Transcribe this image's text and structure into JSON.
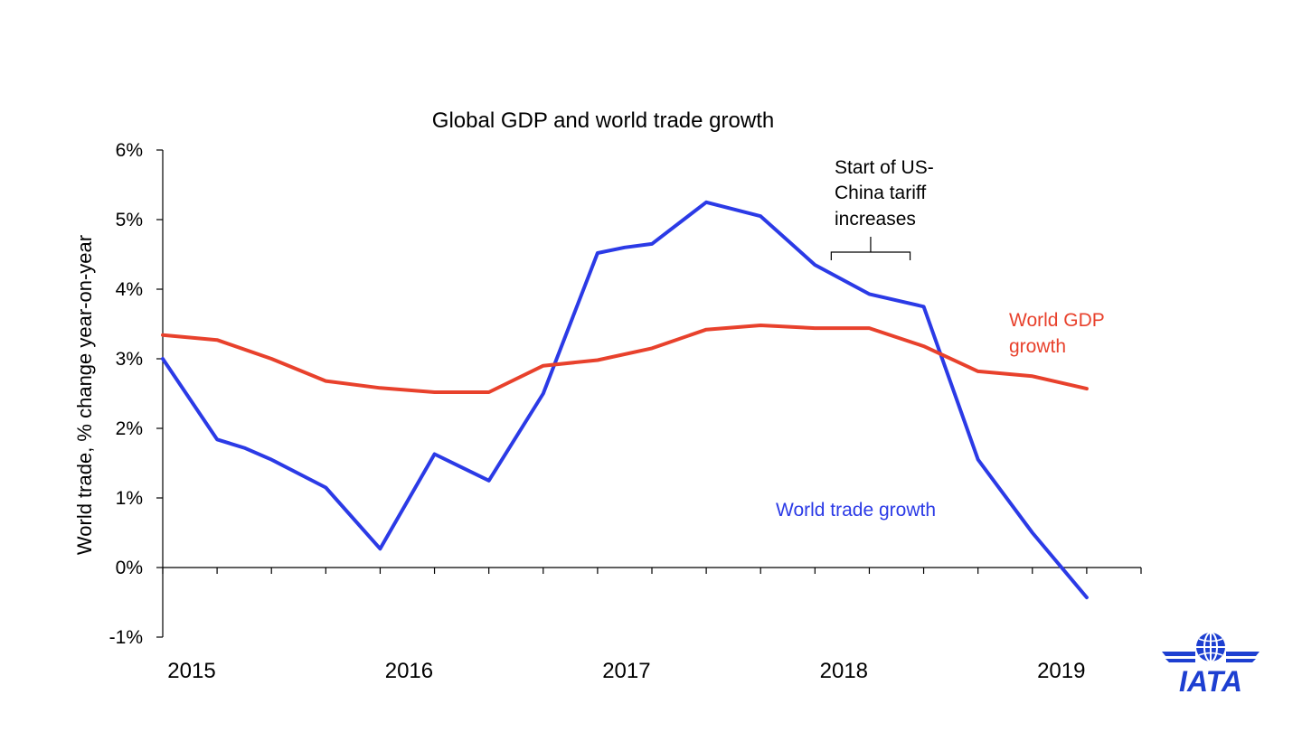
{
  "chart_data": {
    "type": "line",
    "title": "Global GDP and world trade growth",
    "xlabel": "",
    "ylabel": "World trade, % change year-on-year",
    "ylim": [
      -1,
      6
    ],
    "y_ticks": [
      "-1%",
      "0%",
      "1%",
      "2%",
      "3%",
      "4%",
      "5%",
      "6%"
    ],
    "x_ticks": [
      "2015",
      "2016",
      "2017",
      "2018",
      "2019"
    ],
    "x_range": [
      2015,
      2019.5
    ],
    "grid": false,
    "legend": "none",
    "series": [
      {
        "name": "World trade growth",
        "color": "#2b3ae6",
        "x": [
          2015.0,
          2015.25,
          2015.375,
          2015.5,
          2015.75,
          2016.0,
          2016.25,
          2016.5,
          2016.75,
          2017.0,
          2017.125,
          2017.25,
          2017.5,
          2017.75,
          2018.0,
          2018.25,
          2018.5,
          2018.75,
          2019.0,
          2019.25
        ],
        "values": [
          3.0,
          1.84,
          1.72,
          1.55,
          1.15,
          0.27,
          1.63,
          1.25,
          2.5,
          4.52,
          4.6,
          4.65,
          5.25,
          5.05,
          4.35,
          3.93,
          3.75,
          1.55,
          0.5,
          -0.43
        ]
      },
      {
        "name": "World GDP growth",
        "color": "#e8412c",
        "x": [
          2015.0,
          2015.25,
          2015.5,
          2015.75,
          2016.0,
          2016.25,
          2016.5,
          2016.75,
          2017.0,
          2017.25,
          2017.5,
          2017.75,
          2018.0,
          2018.25,
          2018.5,
          2018.75,
          2019.0,
          2019.25
        ],
        "values": [
          3.34,
          3.27,
          3.0,
          2.68,
          2.58,
          2.52,
          2.52,
          2.9,
          2.98,
          3.15,
          3.42,
          3.48,
          3.44,
          3.44,
          3.18,
          2.82,
          2.75,
          2.57
        ]
      }
    ],
    "annotations": {
      "tariff_lines": [
        "Start of US-",
        "China tariff",
        "increases"
      ],
      "tariff_span": [
        2018.0,
        2018.5
      ],
      "gdp_label_lines": [
        "World GDP",
        "growth"
      ],
      "trade_label": "World trade growth"
    }
  },
  "logo": {
    "text": "IATA",
    "color": "#1d3fd1"
  }
}
